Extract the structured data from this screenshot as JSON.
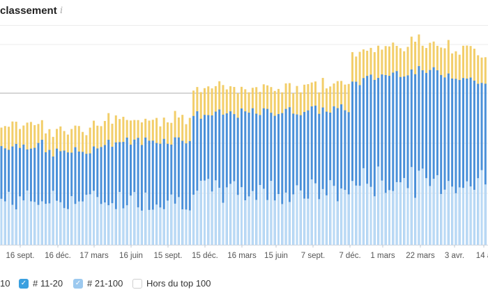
{
  "header": {
    "title": "classement",
    "info_icon": "info-icon"
  },
  "chart_data": {
    "type": "bar",
    "stacked": true,
    "x_tick_labels": [
      "16 sept.",
      "16 déc.",
      "17 mars",
      "16 juin",
      "15 sept.",
      "15 déc.",
      "16 mars",
      "15 juin",
      "7 sept.",
      "7 déc.",
      "1 mars",
      "22 mars",
      "3 avr.",
      "14 a"
    ],
    "series": [
      {
        "name": "# 21-100",
        "color": "#b9d9f5"
      },
      {
        "name": "# 11-20",
        "color": "#4a90d9"
      },
      {
        "name": "",
        "color": "#f2ce6a"
      }
    ],
    "grid": true,
    "legend": "bottom"
  },
  "legend": {
    "items": [
      {
        "label": "10",
        "color": "#f2ce6a",
        "checked": true
      },
      {
        "label": "# 11-20",
        "color": "#3aa0e0",
        "checked": true
      },
      {
        "label": "# 21-100",
        "color": "#9cc9ef",
        "checked": true
      },
      {
        "label": "Hors du top 100",
        "color": "#ffffff",
        "checked": false
      }
    ]
  }
}
